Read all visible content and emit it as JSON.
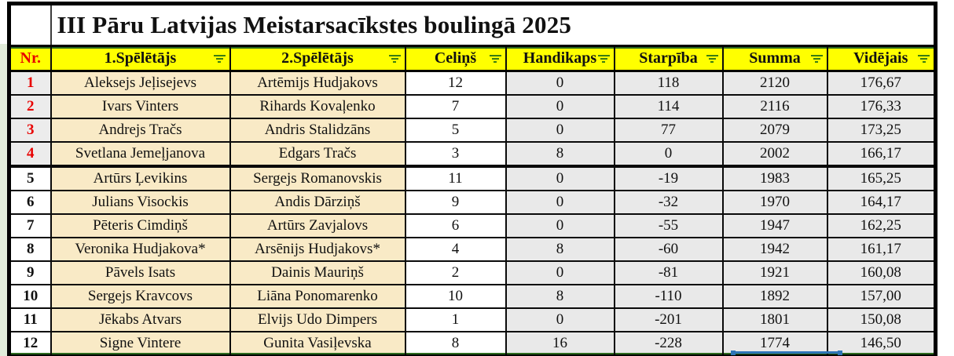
{
  "title": "III Pāru Latvijas Meistarsacīkstes boulingā 2025",
  "columns": [
    {
      "key": "nr",
      "label": "Nr.",
      "filter": false
    },
    {
      "key": "p1",
      "label": "1.Spēlētājs",
      "filter": true
    },
    {
      "key": "p2",
      "label": "2.Spēlētājs",
      "filter": true
    },
    {
      "key": "celins",
      "label": "Celiņš",
      "filter": true
    },
    {
      "key": "handikaps",
      "label": "Handikaps",
      "filter": true
    },
    {
      "key": "starpiba",
      "label": "Starpība",
      "filter": true
    },
    {
      "key": "summa",
      "label": "Summa",
      "filter": true
    },
    {
      "key": "videjais",
      "label": "Vidējais",
      "filter": true
    }
  ],
  "rows": [
    {
      "nr": "1",
      "p1": "Aleksejs Jeļisejevs",
      "p2": "Artēmijs Hudjakovs",
      "celins": "12",
      "handikaps": "0",
      "starpiba": "118",
      "summa": "2120",
      "videjais": "176,67",
      "top4": true
    },
    {
      "nr": "2",
      "p1": "Ivars Vinters",
      "p2": "Rihards Kovaļenko",
      "celins": "7",
      "handikaps": "0",
      "starpiba": "114",
      "summa": "2116",
      "videjais": "176,33",
      "top4": true
    },
    {
      "nr": "3",
      "p1": "Andrejs Tračs",
      "p2": "Andris Stalidzāns",
      "celins": "5",
      "handikaps": "0",
      "starpiba": "77",
      "summa": "2079",
      "videjais": "173,25",
      "top4": true
    },
    {
      "nr": "4",
      "p1": "Svetlana Jemeļjanova",
      "p2": "Edgars Tračs",
      "celins": "3",
      "handikaps": "8",
      "starpiba": "0",
      "summa": "2002",
      "videjais": "166,17",
      "top4": true
    },
    {
      "nr": "5",
      "p1": "Artūrs Ļevikins",
      "p2": "Sergejs Romanovskis",
      "celins": "11",
      "handikaps": "0",
      "starpiba": "-19",
      "summa": "1983",
      "videjais": "165,25",
      "top4": false
    },
    {
      "nr": "6",
      "p1": "Julians Visockis",
      "p2": "Andis Dārziņš",
      "celins": "9",
      "handikaps": "0",
      "starpiba": "-32",
      "summa": "1970",
      "videjais": "164,17",
      "top4": false
    },
    {
      "nr": "7",
      "p1": "Pēteris Cimdiņš",
      "p2": "Artūrs Zavjalovs",
      "celins": "6",
      "handikaps": "0",
      "starpiba": "-55",
      "summa": "1947",
      "videjais": "162,25",
      "top4": false
    },
    {
      "nr": "8",
      "p1": "Veronika Hudjakova*",
      "p2": "Arsēnijs Hudjakovs*",
      "celins": "4",
      "handikaps": "8",
      "starpiba": "-60",
      "summa": "1942",
      "videjais": "161,17",
      "top4": false
    },
    {
      "nr": "9",
      "p1": "Pāvels Isats",
      "p2": "Dainis Mauriņš",
      "celins": "2",
      "handikaps": "0",
      "starpiba": "-81",
      "summa": "1921",
      "videjais": "160,08",
      "top4": false
    },
    {
      "nr": "10",
      "p1": "Sergejs Kravcovs",
      "p2": "Liāna Ponomarenko",
      "celins": "10",
      "handikaps": "8",
      "starpiba": "-110",
      "summa": "1892",
      "videjais": "157,00",
      "top4": false
    },
    {
      "nr": "11",
      "p1": "Jēkabs Atvars",
      "p2": "Elvijs Udo Dimpers",
      "celins": "1",
      "handikaps": "0",
      "starpiba": "-201",
      "summa": "1801",
      "videjais": "150,08",
      "top4": false
    },
    {
      "nr": "12",
      "p1": "Signe Vintere",
      "p2": "Gunita Vasiļevska",
      "celins": "8",
      "handikaps": "16",
      "starpiba": "-228",
      "summa": "1774",
      "videjais": "146,50",
      "top4": false
    }
  ],
  "colors": {
    "header_bg": "#FFFF00",
    "rank_red": "#E80000",
    "name_cell_bg": "#F9EAC6",
    "stat_cell_bg": "#E9E9E9",
    "filter_icon_green": "#3A7D12",
    "accent_line_green": "#2D6A1F",
    "selection_blue": "#2E75B6",
    "grid_black": "#000000"
  },
  "icons": {
    "filter": "filter-icon"
  }
}
